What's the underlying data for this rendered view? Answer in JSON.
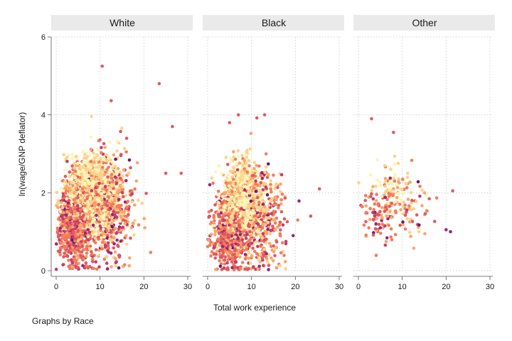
{
  "chart_data": {
    "type": "scatter",
    "facet_by": "Race",
    "panels": [
      "White",
      "Black",
      "Other"
    ],
    "xlabel": "Total work experience",
    "ylabel": "ln(wage/GNP deflator)",
    "xlim": [
      0,
      30
    ],
    "ylim": [
      0,
      6
    ],
    "xticks": [
      0,
      10,
      20,
      30
    ],
    "yticks": [
      0,
      2,
      4,
      6
    ],
    "grid": true,
    "colors": {
      "strip_bg": "#eaeaea",
      "grid": "#c8c8c8",
      "palette": [
        "#fdf3b6",
        "#fdd28c",
        "#f9a66c",
        "#f17c5d",
        "#e05a5f",
        "#c63e68",
        "#9b2774",
        "#6b1a6e",
        "#1a0f1f"
      ]
    },
    "series": [
      {
        "panel": "White",
        "clusters": [
          {
            "x_center": 8,
            "y_center": 2.0,
            "x_spread": 4.5,
            "y_spread": 0.45,
            "n": 1400,
            "tone": "light"
          },
          {
            "x_center": 4,
            "y_center": 1.2,
            "x_spread": 3.0,
            "y_spread": 0.55,
            "n": 700,
            "tone": "warm"
          },
          {
            "x_center": 12,
            "y_center": 1.6,
            "x_spread": 5.0,
            "y_spread": 0.7,
            "n": 500,
            "tone": "mixed"
          }
        ],
        "x_range": [
          0,
          29
        ],
        "outliers": [
          {
            "x": 10.5,
            "y": 5.25
          },
          {
            "x": 23.5,
            "y": 4.8
          },
          {
            "x": 26.5,
            "y": 3.7
          },
          {
            "x": 12.5,
            "y": 0.45
          },
          {
            "x": 25.0,
            "y": 2.5
          },
          {
            "x": 28.5,
            "y": 2.5
          }
        ]
      },
      {
        "panel": "Black",
        "clusters": [
          {
            "x_center": 8,
            "y_center": 1.8,
            "x_spread": 4.0,
            "y_spread": 0.45,
            "n": 900,
            "tone": "light"
          },
          {
            "x_center": 5,
            "y_center": 1.0,
            "x_spread": 3.5,
            "y_spread": 0.55,
            "n": 550,
            "tone": "warm"
          },
          {
            "x_center": 12,
            "y_center": 1.3,
            "x_spread": 4.5,
            "y_spread": 0.65,
            "n": 400,
            "tone": "mixed"
          }
        ],
        "x_range": [
          0,
          27
        ],
        "outliers": [
          {
            "x": 7.0,
            "y": 4.0
          },
          {
            "x": 13.0,
            "y": 4.0
          },
          {
            "x": 5.0,
            "y": 3.8
          },
          {
            "x": 25.5,
            "y": 2.1
          },
          {
            "x": 23.5,
            "y": 1.4
          },
          {
            "x": 19.5,
            "y": 0.9
          }
        ]
      },
      {
        "panel": "Other",
        "clusters": [
          {
            "x_center": 8,
            "y_center": 2.1,
            "x_spread": 4.5,
            "y_spread": 0.35,
            "n": 90,
            "tone": "light"
          },
          {
            "x_center": 5,
            "y_center": 1.4,
            "x_spread": 3.5,
            "y_spread": 0.35,
            "n": 90,
            "tone": "warm"
          },
          {
            "x_center": 12,
            "y_center": 1.5,
            "x_spread": 4.5,
            "y_spread": 0.45,
            "n": 50,
            "tone": "mixed"
          }
        ],
        "x_range": [
          0,
          22
        ],
        "outliers": [
          {
            "x": 3.0,
            "y": 3.9
          },
          {
            "x": 8.0,
            "y": 3.55
          },
          {
            "x": 21.5,
            "y": 2.05
          },
          {
            "x": 21.0,
            "y": 1.0
          },
          {
            "x": 20.0,
            "y": 1.05
          },
          {
            "x": 4.0,
            "y": 1.2
          },
          {
            "x": 5.0,
            "y": 1.1
          }
        ]
      }
    ]
  },
  "footer": {
    "note": "Graphs by Race"
  }
}
